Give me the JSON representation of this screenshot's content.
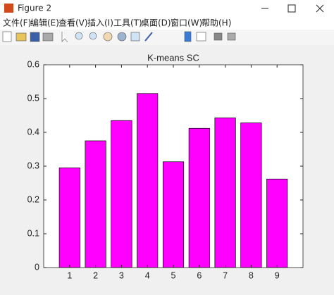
{
  "window": {
    "title": "Figure 2"
  },
  "menu": [
    "文件(F)",
    "编辑(E)",
    "查看(V)",
    "插入(I)",
    "工具(T)",
    "桌面(D)",
    "窗口(W)",
    "帮助(H)"
  ],
  "chart_data": {
    "type": "bar",
    "title": "K-means SC",
    "x": [
      1,
      2,
      3,
      4,
      5,
      6,
      7,
      8,
      9
    ],
    "values": [
      0.295,
      0.375,
      0.435,
      0.515,
      0.313,
      0.412,
      0.443,
      0.428,
      0.262
    ],
    "color": "#ff00ff",
    "xlim": [
      0,
      10
    ],
    "xticks": [
      1,
      2,
      3,
      4,
      5,
      6,
      7,
      8,
      9
    ],
    "ylim": [
      0,
      0.6
    ],
    "yticks": [
      0,
      0.1,
      0.2,
      0.3,
      0.4,
      0.5,
      0.6
    ]
  }
}
